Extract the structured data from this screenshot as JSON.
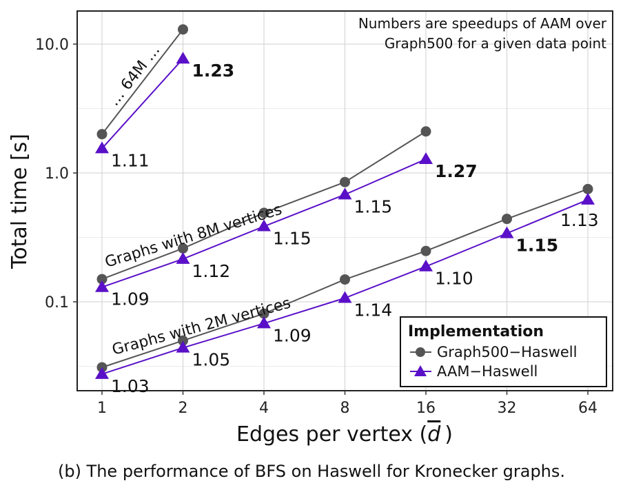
{
  "chart_data": {
    "type": "line",
    "xlabel": "Edges per vertex (",
    "xlabel_symbol": "d",
    "xlabel_close": ")",
    "ylabel": "Total time [s]",
    "yscale": "log",
    "x_scale": "log2",
    "categories": [
      1,
      2,
      4,
      8,
      16,
      32,
      64
    ],
    "xticks": [
      "1",
      "2",
      "4",
      "8",
      "16",
      "32",
      "64"
    ],
    "yticks": [
      "0.1",
      "1.0",
      "10.0"
    ],
    "ylim": [
      0.02,
      20
    ],
    "grid": true,
    "note_lines": [
      "Numbers are speedups of AAM over",
      "Graph500 for a given data point"
    ],
    "legend": {
      "title": "Implementation",
      "position": "bottom-right",
      "entries": [
        "Graph500−Haswell",
        "AAM−Haswell"
      ]
    },
    "colors": {
      "Graph500−Haswell": "#555555",
      "AAM−Haswell": "#5a10c8"
    },
    "groups": [
      {
        "label": "… 64M …",
        "x": [
          1,
          2
        ],
        "series": [
          {
            "name": "Graph500−Haswell",
            "values": [
              2.0,
              13.0
            ]
          },
          {
            "name": "AAM−Haswell",
            "values": [
              1.55,
              7.7
            ]
          }
        ],
        "speedups": [
          "1.11",
          "1.23"
        ],
        "bold": [
          false,
          true
        ]
      },
      {
        "label": "Graphs with 8M vertices",
        "x": [
          1,
          2,
          4,
          8,
          16
        ],
        "series": [
          {
            "name": "Graph500−Haswell",
            "values": [
              0.15,
              0.26,
              0.49,
              0.85,
              2.1
            ]
          },
          {
            "name": "AAM−Haswell",
            "values": [
              0.13,
              0.215,
              0.385,
              0.68,
              1.28
            ]
          }
        ],
        "speedups": [
          "1.09",
          "1.12",
          "1.15",
          "1.15",
          "1.27"
        ],
        "bold": [
          false,
          false,
          false,
          false,
          true
        ]
      },
      {
        "label": "Graphs with 2M vertices",
        "x": [
          1,
          2,
          4,
          8,
          16,
          32,
          64
        ],
        "series": [
          {
            "name": "Graph500−Haswell",
            "values": [
              0.031,
              0.05,
              0.081,
              0.149,
              0.248,
              0.44,
              0.75
            ]
          },
          {
            "name": "AAM−Haswell",
            "values": [
              0.0275,
              0.044,
              0.068,
              0.107,
              0.188,
              0.34,
              0.62
            ]
          }
        ],
        "speedups": [
          "1.03",
          "1.05",
          "1.09",
          "1.14",
          "1.10",
          "1.15",
          "1.13"
        ],
        "bold": [
          false,
          false,
          false,
          false,
          false,
          true,
          false
        ]
      }
    ]
  },
  "caption": "(b) The performance of BFS on Haswell for Kronecker graphs."
}
